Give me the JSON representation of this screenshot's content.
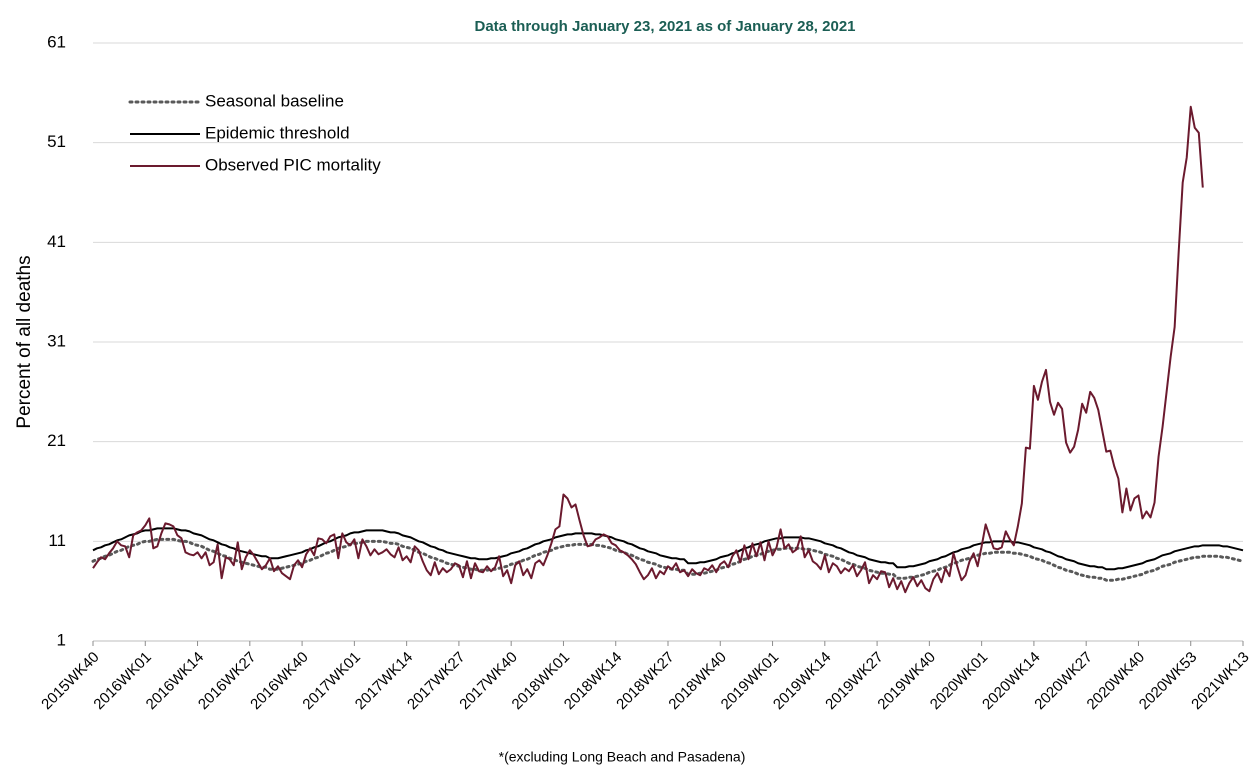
{
  "chart_data": {
    "type": "line",
    "subtitle": "Data through January 23, 2021 as of January 28, 2021",
    "y_label": "Percent of all deaths",
    "footnote": "*(excluding Long Beach and Pasadena)",
    "legend": "upper left",
    "grid": true,
    "ylim": [
      1,
      61
    ],
    "yticks": [
      1,
      11,
      21,
      31,
      41,
      51,
      61
    ],
    "categories": [
      "2015WK40",
      null,
      null,
      null,
      null,
      null,
      null,
      null,
      null,
      null,
      null,
      null,
      null,
      "2016WK01",
      null,
      null,
      null,
      null,
      null,
      null,
      null,
      null,
      null,
      null,
      null,
      null,
      "2016WK14",
      null,
      null,
      null,
      null,
      null,
      null,
      null,
      null,
      null,
      null,
      null,
      null,
      "2016WK27",
      null,
      null,
      null,
      null,
      null,
      null,
      null,
      null,
      null,
      null,
      null,
      null,
      "2016WK40",
      null,
      null,
      null,
      null,
      null,
      null,
      null,
      null,
      null,
      null,
      null,
      null,
      "2017WK01",
      null,
      null,
      null,
      null,
      null,
      null,
      null,
      null,
      null,
      null,
      null,
      null,
      "2017WK14",
      null,
      null,
      null,
      null,
      null,
      null,
      null,
      null,
      null,
      null,
      null,
      null,
      "2017WK27",
      null,
      null,
      null,
      null,
      null,
      null,
      null,
      null,
      null,
      null,
      null,
      null,
      "2017WK40",
      null,
      null,
      null,
      null,
      null,
      null,
      null,
      null,
      null,
      null,
      null,
      null,
      "2018WK01",
      null,
      null,
      null,
      null,
      null,
      null,
      null,
      null,
      null,
      null,
      null,
      null,
      "2018WK14",
      null,
      null,
      null,
      null,
      null,
      null,
      null,
      null,
      null,
      null,
      null,
      null,
      "2018WK27",
      null,
      null,
      null,
      null,
      null,
      null,
      null,
      null,
      null,
      null,
      null,
      null,
      "2018WK40",
      null,
      null,
      null,
      null,
      null,
      null,
      null,
      null,
      null,
      null,
      null,
      null,
      "2019WK01",
      null,
      null,
      null,
      null,
      null,
      null,
      null,
      null,
      null,
      null,
      null,
      null,
      "2019WK14",
      null,
      null,
      null,
      null,
      null,
      null,
      null,
      null,
      null,
      null,
      null,
      null,
      "2019WK27",
      null,
      null,
      null,
      null,
      null,
      null,
      null,
      null,
      null,
      null,
      null,
      null,
      "2019WK40",
      null,
      null,
      null,
      null,
      null,
      null,
      null,
      null,
      null,
      null,
      null,
      null,
      "2020WK01",
      null,
      null,
      null,
      null,
      null,
      null,
      null,
      null,
      null,
      null,
      null,
      null,
      "2020WK14",
      null,
      null,
      null,
      null,
      null,
      null,
      null,
      null,
      null,
      null,
      null,
      null,
      "2020WK27",
      null,
      null,
      null,
      null,
      null,
      null,
      null,
      null,
      null,
      null,
      null,
      null,
      "2020WK40",
      null,
      null,
      null,
      null,
      null,
      null,
      null,
      null,
      null,
      null,
      null,
      null,
      "2020WK53",
      null,
      null,
      null,
      null,
      null,
      null,
      null,
      null,
      null,
      null,
      null,
      null,
      "2021WK13"
    ],
    "series": [
      {
        "name": "Seasonal baseline",
        "color": "#595959",
        "line_style": "dotted",
        "values": [
          9.0,
          9.2,
          9.3,
          9.5,
          9.6,
          9.8,
          10.0,
          10.1,
          10.3,
          10.5,
          10.6,
          10.7,
          10.9,
          11.0,
          11.0,
          11.1,
          11.2,
          11.2,
          11.2,
          11.2,
          11.2,
          11.1,
          11.0,
          11.0,
          10.9,
          10.7,
          10.6,
          10.5,
          10.3,
          10.1,
          10.0,
          9.8,
          9.6,
          9.5,
          9.3,
          9.2,
          9.0,
          8.9,
          8.8,
          8.7,
          8.6,
          8.5,
          8.4,
          8.4,
          8.2,
          8.2,
          8.2,
          8.3,
          8.4,
          8.5,
          8.6,
          8.7,
          8.8,
          9.0,
          9.1,
          9.3,
          9.4,
          9.6,
          9.8,
          9.9,
          10.1,
          10.3,
          10.4,
          10.5,
          10.7,
          10.8,
          10.8,
          10.9,
          11.0,
          11.0,
          11.0,
          11.0,
          11.0,
          10.9,
          10.8,
          10.8,
          10.7,
          10.5,
          10.4,
          10.3,
          10.1,
          9.9,
          9.8,
          9.6,
          9.4,
          9.3,
          9.1,
          9.0,
          8.8,
          8.7,
          8.6,
          8.5,
          8.4,
          8.3,
          8.2,
          8.2,
          8.1,
          8.1,
          8.1,
          8.2,
          8.2,
          8.3,
          8.4,
          8.5,
          8.7,
          8.8,
          8.9,
          9.1,
          9.2,
          9.4,
          9.6,
          9.7,
          9.9,
          10.0,
          10.1,
          10.3,
          10.4,
          10.5,
          10.6,
          10.6,
          10.7,
          10.7,
          10.7,
          10.7,
          10.7,
          10.6,
          10.6,
          10.5,
          10.4,
          10.3,
          10.1,
          10.0,
          9.9,
          9.7,
          9.6,
          9.4,
          9.2,
          9.1,
          8.9,
          8.8,
          8.7,
          8.5,
          8.4,
          8.3,
          8.2,
          8.2,
          8.1,
          8.1,
          7.7,
          7.7,
          7.7,
          7.8,
          7.8,
          7.9,
          8.0,
          8.1,
          8.3,
          8.4,
          8.5,
          8.7,
          8.8,
          9.0,
          9.2,
          9.3,
          9.5,
          9.6,
          9.7,
          9.9,
          10.0,
          10.1,
          10.2,
          10.2,
          10.3,
          10.3,
          10.3,
          10.3,
          10.3,
          10.2,
          10.2,
          10.1,
          10.0,
          9.9,
          9.7,
          9.6,
          9.5,
          9.3,
          9.2,
          9.0,
          8.8,
          8.7,
          8.5,
          8.4,
          8.3,
          8.1,
          8.0,
          7.9,
          7.8,
          7.8,
          7.7,
          7.7,
          7.3,
          7.3,
          7.3,
          7.4,
          7.4,
          7.5,
          7.6,
          7.7,
          7.9,
          8.0,
          8.1,
          8.3,
          8.4,
          8.6,
          8.8,
          8.9,
          9.1,
          9.2,
          9.3,
          9.5,
          9.6,
          9.7,
          9.8,
          9.8,
          9.9,
          9.9,
          9.9,
          9.9,
          9.9,
          9.8,
          9.8,
          9.7,
          9.6,
          9.5,
          9.3,
          9.2,
          9.1,
          8.9,
          8.8,
          8.6,
          8.4,
          8.3,
          8.1,
          8.0,
          7.9,
          7.7,
          7.6,
          7.5,
          7.4,
          7.4,
          7.3,
          7.3,
          7.1,
          7.1,
          7.1,
          7.2,
          7.2,
          7.3,
          7.4,
          7.5,
          7.6,
          7.7,
          7.9,
          8.0,
          8.1,
          8.3,
          8.5,
          8.6,
          8.7,
          8.9,
          9.0,
          9.1,
          9.2,
          9.3,
          9.4,
          9.4,
          9.5,
          9.5,
          9.5,
          9.5,
          9.5,
          9.4,
          9.4,
          9.3,
          9.2,
          9.1,
          9.0
        ]
      },
      {
        "name": "Epidemic threshold",
        "color": "#000000",
        "line_style": "solid",
        "values": [
          10.1,
          10.3,
          10.4,
          10.6,
          10.7,
          10.9,
          11.1,
          11.2,
          11.4,
          11.6,
          11.7,
          11.8,
          12.0,
          12.1,
          12.1,
          12.2,
          12.3,
          12.3,
          12.3,
          12.3,
          12.3,
          12.2,
          12.1,
          12.1,
          12.0,
          11.8,
          11.7,
          11.6,
          11.4,
          11.2,
          11.1,
          10.9,
          10.7,
          10.6,
          10.4,
          10.3,
          10.1,
          10.0,
          9.9,
          9.8,
          9.7,
          9.6,
          9.5,
          9.5,
          9.3,
          9.3,
          9.3,
          9.4,
          9.5,
          9.6,
          9.7,
          9.8,
          9.9,
          10.1,
          10.2,
          10.4,
          10.5,
          10.7,
          10.9,
          11.0,
          11.2,
          11.4,
          11.5,
          11.6,
          11.8,
          11.9,
          11.9,
          12.0,
          12.1,
          12.1,
          12.1,
          12.1,
          12.1,
          12.0,
          11.9,
          11.9,
          11.8,
          11.6,
          11.5,
          11.4,
          11.2,
          11.0,
          10.9,
          10.7,
          10.5,
          10.4,
          10.2,
          10.1,
          9.9,
          9.8,
          9.7,
          9.6,
          9.5,
          9.4,
          9.3,
          9.3,
          9.2,
          9.2,
          9.2,
          9.3,
          9.3,
          9.4,
          9.5,
          9.6,
          9.8,
          9.9,
          10.0,
          10.2,
          10.3,
          10.5,
          10.7,
          10.8,
          11.0,
          11.1,
          11.2,
          11.4,
          11.5,
          11.6,
          11.7,
          11.7,
          11.8,
          11.8,
          11.8,
          11.8,
          11.8,
          11.7,
          11.7,
          11.6,
          11.5,
          11.4,
          11.2,
          11.1,
          11.0,
          10.8,
          10.7,
          10.5,
          10.3,
          10.2,
          10.0,
          9.9,
          9.8,
          9.6,
          9.5,
          9.4,
          9.3,
          9.3,
          9.2,
          9.2,
          8.8,
          8.8,
          8.8,
          8.9,
          8.9,
          9.0,
          9.1,
          9.2,
          9.4,
          9.5,
          9.6,
          9.8,
          9.9,
          10.1,
          10.3,
          10.4,
          10.6,
          10.7,
          10.8,
          11.0,
          11.1,
          11.2,
          11.3,
          11.3,
          11.4,
          11.4,
          11.4,
          11.4,
          11.4,
          11.3,
          11.3,
          11.2,
          11.1,
          11.0,
          10.8,
          10.7,
          10.6,
          10.4,
          10.3,
          10.1,
          9.9,
          9.8,
          9.6,
          9.5,
          9.4,
          9.2,
          9.1,
          9.0,
          8.9,
          8.9,
          8.8,
          8.8,
          8.4,
          8.4,
          8.4,
          8.5,
          8.5,
          8.6,
          8.7,
          8.8,
          9.0,
          9.1,
          9.2,
          9.4,
          9.5,
          9.7,
          9.9,
          10.0,
          10.2,
          10.3,
          10.4,
          10.6,
          10.7,
          10.8,
          10.9,
          10.9,
          11.0,
          11.0,
          11.0,
          11.0,
          11.0,
          10.9,
          10.9,
          10.8,
          10.7,
          10.6,
          10.4,
          10.3,
          10.2,
          10.0,
          9.9,
          9.7,
          9.5,
          9.4,
          9.2,
          9.1,
          9.0,
          8.8,
          8.7,
          8.6,
          8.5,
          8.5,
          8.4,
          8.4,
          8.2,
          8.2,
          8.2,
          8.3,
          8.3,
          8.4,
          8.5,
          8.6,
          8.7,
          8.8,
          9.0,
          9.1,
          9.2,
          9.4,
          9.6,
          9.7,
          9.8,
          10.0,
          10.1,
          10.2,
          10.3,
          10.4,
          10.5,
          10.5,
          10.6,
          10.6,
          10.6,
          10.6,
          10.6,
          10.5,
          10.5,
          10.4,
          10.3,
          10.2,
          10.1
        ]
      },
      {
        "name": "Observed PIC mortality",
        "color": "#6b1a2e",
        "line_style": "solid",
        "values": [
          8.3,
          8.9,
          9.4,
          9.2,
          9.8,
          10.3,
          11.0,
          10.6,
          10.5,
          9.4,
          11.6,
          11.9,
          12.1,
          12.6,
          13.3,
          10.3,
          10.5,
          11.8,
          12.8,
          12.7,
          12.5,
          11.6,
          11.3,
          9.9,
          9.7,
          9.6,
          9.9,
          9.3,
          9.9,
          8.6,
          8.9,
          10.7,
          7.3,
          9.4,
          9.2,
          8.6,
          10.9,
          8.2,
          9.4,
          10.1,
          9.6,
          8.9,
          8.2,
          8.6,
          9.3,
          8.0,
          8.5,
          7.8,
          7.5,
          7.2,
          8.6,
          9.1,
          8.4,
          9.7,
          10.3,
          9.6,
          11.3,
          11.2,
          10.8,
          11.5,
          11.7,
          9.3,
          11.8,
          10.9,
          10.6,
          11.2,
          9.3,
          11.2,
          10.5,
          9.6,
          10.2,
          9.7,
          9.9,
          10.2,
          9.7,
          9.4,
          10.4,
          9.1,
          9.5,
          8.9,
          10.5,
          10.1,
          9.0,
          8.1,
          7.6,
          8.9,
          7.7,
          8.3,
          7.9,
          8.2,
          8.8,
          8.6,
          7.4,
          9.0,
          7.3,
          8.8,
          8.0,
          7.9,
          8.5,
          8.0,
          8.4,
          9.5,
          7.5,
          8.1,
          6.8,
          8.6,
          9.0,
          7.6,
          8.2,
          7.3,
          8.8,
          9.1,
          8.6,
          9.6,
          10.8,
          12.2,
          12.5,
          15.7,
          15.3,
          14.4,
          14.7,
          13.1,
          11.6,
          10.5,
          10.6,
          11.2,
          11.4,
          11.7,
          11.5,
          10.8,
          10.6,
          10.1,
          9.9,
          9.6,
          9.2,
          8.7,
          7.9,
          7.2,
          7.6,
          8.3,
          7.3,
          8.0,
          7.7,
          8.5,
          8.2,
          8.8,
          7.9,
          8.1,
          7.5,
          8.2,
          7.8,
          7.6,
          8.3,
          8.1,
          8.6,
          7.9,
          8.7,
          9.0,
          8.4,
          9.5,
          10.1,
          8.9,
          10.6,
          9.2,
          10.8,
          9.5,
          10.9,
          9.1,
          11.0,
          9.6,
          10.4,
          12.2,
          10.3,
          10.7,
          9.9,
          10.2,
          11.5,
          9.4,
          10.1,
          9.0,
          8.7,
          8.2,
          9.6,
          7.9,
          8.8,
          8.5,
          7.8,
          8.3,
          8.0,
          8.6,
          7.5,
          8.1,
          8.9,
          6.8,
          7.6,
          7.2,
          8.0,
          7.9,
          6.4,
          7.3,
          6.2,
          7.0,
          5.9,
          6.8,
          7.4,
          6.5,
          7.1,
          6.3,
          6.0,
          7.2,
          7.8,
          6.9,
          8.3,
          7.5,
          9.8,
          8.4,
          7.1,
          7.6,
          9.0,
          9.8,
          8.5,
          10.5,
          12.7,
          11.5,
          10.3,
          10.2,
          10.4,
          12.0,
          11.2,
          10.6,
          12.5,
          14.8,
          20.4,
          20.3,
          26.6,
          25.2,
          27.0,
          28.2,
          25.0,
          23.7,
          24.9,
          24.3,
          20.9,
          19.9,
          20.5,
          22.2,
          24.8,
          23.9,
          26.0,
          25.4,
          24.2,
          22.1,
          20.0,
          20.1,
          18.5,
          17.3,
          13.9,
          16.3,
          14.1,
          15.3,
          15.6,
          13.3,
          14.0,
          13.4,
          14.9,
          19.5,
          22.5,
          26.0,
          29.5,
          32.5,
          40.0,
          47.0,
          49.5,
          54.6,
          52.5,
          52.0,
          46.5,
          null,
          null,
          null,
          null,
          null,
          null,
          null,
          null,
          null,
          null
        ]
      }
    ]
  }
}
